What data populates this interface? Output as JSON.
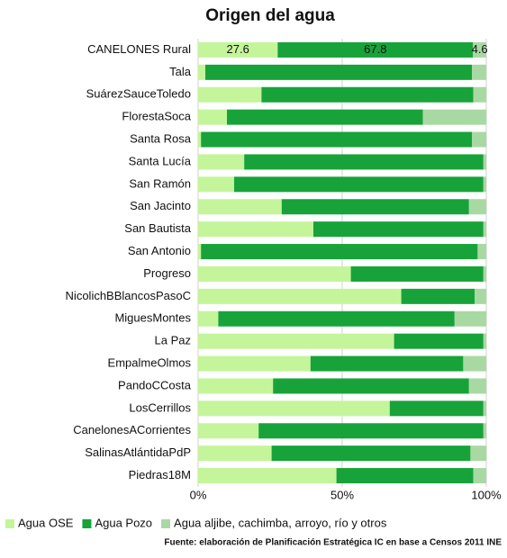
{
  "chart_data": {
    "type": "stacked_barh",
    "title": "Origen del agua",
    "categories": [
      "CANELONES Rural",
      "Tala",
      "SuárezSauceToledo",
      "FlorestaSoca",
      "Santa Rosa",
      "Santa Lucía",
      "San Ramón",
      "San Jacinto",
      "San Bautista",
      "San Antonio",
      "Progreso",
      "NicolichBBlancosPasoC",
      "MiguesMontes",
      "La Paz",
      "EmpalmeOlmos",
      "PandoCCosta",
      "LosCerrillos",
      "CanelonesACorrientes",
      "SalinasAtlántidaPdP",
      "Piedras18M"
    ],
    "series": [
      {
        "name": "Agua OSE",
        "color": "#c4f59a",
        "values": [
          27.6,
          2.5,
          22,
          10,
          1,
          16,
          12.5,
          29,
          40,
          1,
          53,
          70.5,
          7,
          68,
          39,
          26,
          66.5,
          21,
          25.5,
          48
        ],
        "value_labels": [
          "27.6",
          null,
          null,
          null,
          null,
          null,
          null,
          null,
          null,
          null,
          null,
          null,
          null,
          null,
          null,
          null,
          null,
          null,
          null,
          null
        ]
      },
      {
        "name": "Agua Pozo",
        "color": "#17a33a",
        "values": [
          67.8,
          92.5,
          73.5,
          68,
          94,
          83,
          86.5,
          65,
          59,
          96,
          46,
          25.5,
          82,
          31,
          53,
          68,
          32.5,
          78,
          69,
          47.5
        ],
        "value_labels": [
          "67.8",
          null,
          null,
          null,
          null,
          null,
          null,
          null,
          null,
          null,
          null,
          null,
          null,
          null,
          null,
          null,
          null,
          null,
          null,
          null
        ]
      },
      {
        "name": "Agua aljibe, cachimba, arroyo, río y otros",
        "color": "#a9d9a2",
        "values": [
          4.6,
          5,
          4.5,
          22,
          5,
          1,
          1,
          6,
          1,
          3,
          1,
          4,
          11,
          1,
          8,
          6,
          1,
          1,
          5.5,
          4.5
        ],
        "value_labels": [
          "4.6",
          null,
          null,
          null,
          null,
          null,
          null,
          null,
          null,
          null,
          null,
          null,
          null,
          null,
          null,
          null,
          null,
          null,
          null,
          null
        ]
      }
    ],
    "xlim": [
      0,
      100
    ],
    "xticks": [
      {
        "value": 0,
        "label": "0%"
      },
      {
        "value": 50,
        "label": "50%"
      },
      {
        "value": 100,
        "label": "100%"
      }
    ],
    "grid": true,
    "legend": "bottom",
    "source": "Fuente: elaboración de Planificación Estratégica IC en base a Censos 2011 INE"
  }
}
